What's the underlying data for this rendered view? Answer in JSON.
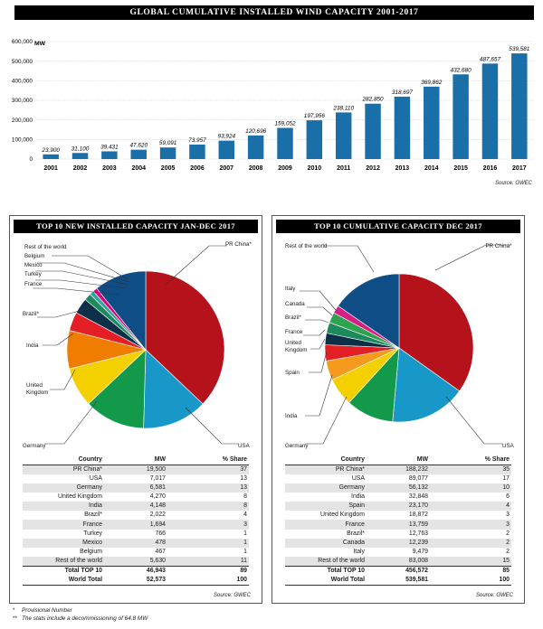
{
  "top_chart": {
    "title": "GLOBAL CUMULATIVE INSTALLED WIND CAPACITY 2001-2017",
    "ylabel": "MW",
    "source": "Source: GWEC"
  },
  "pie_left": {
    "title": "TOP 10 NEW INSTALLED CAPACITY JAN-DEC 2017",
    "source": "Source: GWEC",
    "headers": {
      "country": "Country",
      "mw": "MW",
      "share": "% Share"
    },
    "rows": [
      {
        "country": "PR China*",
        "mw": "19,500",
        "share": "37"
      },
      {
        "country": "USA",
        "mw": "7,017",
        "share": "13"
      },
      {
        "country": "Germany",
        "mw": "6,581",
        "share": "13"
      },
      {
        "country": "United Kingdom",
        "mw": "4,270",
        "share": "8"
      },
      {
        "country": "India",
        "mw": "4,148",
        "share": "8"
      },
      {
        "country": "Brazil*",
        "mw": "2,022",
        "share": "4"
      },
      {
        "country": "France",
        "mw": "1,694",
        "share": "3"
      },
      {
        "country": "Turkey",
        "mw": "766",
        "share": "1"
      },
      {
        "country": "Mexico",
        "mw": "478",
        "share": "1"
      },
      {
        "country": "Belgium",
        "mw": "467",
        "share": "1"
      },
      {
        "country": "Rest of the world",
        "mw": "5,630",
        "share": "11"
      }
    ],
    "totals": [
      {
        "country": "Total TOP 10",
        "mw": "46,943",
        "share": "89"
      },
      {
        "country": "World Total",
        "mw": "52,573",
        "share": "100"
      }
    ],
    "labels": {
      "row": "Rest of the world",
      "belgium": "Belgium",
      "mexico": "Mexico",
      "turkey": "Turkey",
      "france": "France",
      "brazil": "Brazil*",
      "india": "India",
      "uk1": "United",
      "uk2": "Kingdom",
      "germany": "Germany",
      "usa": "USA",
      "china": "PR China*"
    }
  },
  "pie_right": {
    "title": "TOP 10 CUMULATIVE CAPACITY DEC 2017",
    "source": "Source: GWEC",
    "headers": {
      "country": "Country",
      "mw": "MW",
      "share": "% Share"
    },
    "rows": [
      {
        "country": "PR China*",
        "mw": "188,232",
        "share": "35"
      },
      {
        "country": "USA",
        "mw": "89,077",
        "share": "17"
      },
      {
        "country": "Germany",
        "mw": "56,132",
        "share": "10"
      },
      {
        "country": "India",
        "mw": "32,848",
        "share": "6"
      },
      {
        "country": "Spain",
        "mw": "23,170",
        "share": "4"
      },
      {
        "country": "United Kingdom",
        "mw": "18,872",
        "share": "3"
      },
      {
        "country": "France",
        "mw": "13,759",
        "share": "3"
      },
      {
        "country": "Brazil*",
        "mw": "12,763",
        "share": "2"
      },
      {
        "country": "Canada",
        "mw": "12,239",
        "share": "2"
      },
      {
        "country": "Italy",
        "mw": "9,479",
        "share": "2"
      },
      {
        "country": "Rest of the world",
        "mw": "83,008",
        "share": "15"
      }
    ],
    "totals": [
      {
        "country": "Total TOP 10",
        "mw": "456,572",
        "share": "85"
      },
      {
        "country": "World Total",
        "mw": "539,581",
        "share": "100"
      }
    ],
    "labels": {
      "row": "Rest of the world",
      "italy": "Italy",
      "canada": "Canada",
      "brazil": "Brazil*",
      "france": "France",
      "uk1": "United",
      "uk2": "Kingdom",
      "spain": "Spain",
      "india": "India",
      "germany": "Germany",
      "usa": "USA",
      "china": "PR China*"
    }
  },
  "footnotes": {
    "f1_mark": "*",
    "f1": "Provisional Number",
    "f2_mark": "**",
    "f2": "The stats include a decommissioning of 64.8 MW"
  },
  "colors": {
    "bar": "#1a6fa8",
    "china": "#b5121b",
    "usa": "#1798c9",
    "germany": "#129a4a",
    "uk": "#f4d000",
    "india": "#f07d00",
    "brazil": "#e31e24",
    "france": "#0d3049",
    "turkey": "#1d8a5c",
    "mexico": "#2aa7a0",
    "belgium": "#e0007a",
    "rest": "#0e4d86",
    "spain": "#f59a1c",
    "canada": "#2fa24f",
    "italy": "#d61f84"
  },
  "chart_data": [
    {
      "type": "bar",
      "title": "GLOBAL CUMULATIVE INSTALLED WIND CAPACITY 2001-2017",
      "ylabel": "MW",
      "categories": [
        "2001",
        "2002",
        "2003",
        "2004",
        "2005",
        "2006",
        "2007",
        "2008",
        "2009",
        "2010",
        "2011",
        "2012",
        "2013",
        "2014",
        "2015",
        "2016",
        "2017"
      ],
      "values": [
        23900,
        31100,
        39431,
        47620,
        59091,
        73957,
        93924,
        120696,
        159052,
        197956,
        238110,
        282850,
        318697,
        369862,
        432680,
        487657,
        539581
      ],
      "value_labels": [
        "23,900",
        "31,100",
        "39,431",
        "47,620",
        "59,091",
        "73,957",
        "93,924",
        "120,696",
        "159,052",
        "197,956",
        "238,110",
        "282,850",
        "318,697",
        "369,862",
        "432,680",
        "487,657",
        "539,581"
      ],
      "yticks": [
        "0",
        "100,000",
        "200,000",
        "300,000",
        "400,000",
        "500,000",
        "600,000"
      ],
      "ylim": [
        0,
        600000
      ]
    },
    {
      "type": "pie",
      "title": "TOP 10 NEW INSTALLED CAPACITY JAN-DEC 2017",
      "slices": [
        {
          "name": "PR China*",
          "value": 19500
        },
        {
          "name": "USA",
          "value": 7017
        },
        {
          "name": "Germany",
          "value": 6581
        },
        {
          "name": "United Kingdom",
          "value": 4270
        },
        {
          "name": "India",
          "value": 4148
        },
        {
          "name": "Brazil*",
          "value": 2022
        },
        {
          "name": "France",
          "value": 1694
        },
        {
          "name": "Turkey",
          "value": 766
        },
        {
          "name": "Mexico",
          "value": 478
        },
        {
          "name": "Belgium",
          "value": 467
        },
        {
          "name": "Rest of the world",
          "value": 5630
        }
      ]
    },
    {
      "type": "pie",
      "title": "TOP 10 CUMULATIVE CAPACITY DEC 2017",
      "slices": [
        {
          "name": "PR China*",
          "value": 188232
        },
        {
          "name": "USA",
          "value": 89077
        },
        {
          "name": "Germany",
          "value": 56132
        },
        {
          "name": "India",
          "value": 32848
        },
        {
          "name": "Spain",
          "value": 23170
        },
        {
          "name": "United Kingdom",
          "value": 18872
        },
        {
          "name": "France",
          "value": 13759
        },
        {
          "name": "Brazil*",
          "value": 12763
        },
        {
          "name": "Canada",
          "value": 12239
        },
        {
          "name": "Italy",
          "value": 9479
        },
        {
          "name": "Rest of the world",
          "value": 83008
        }
      ]
    }
  ]
}
